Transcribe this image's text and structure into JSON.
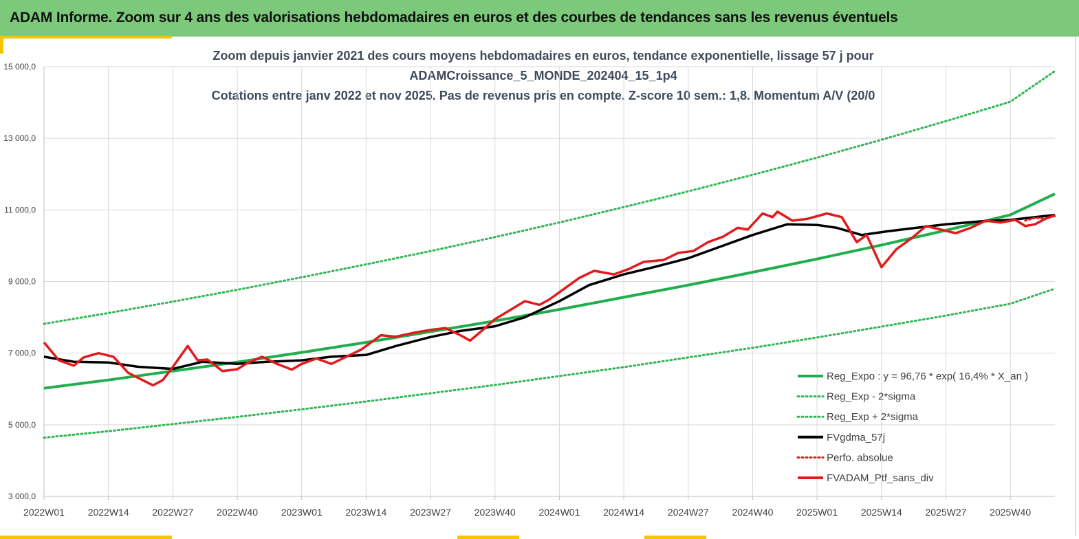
{
  "header": {
    "title": "ADAM Informe. Zoom sur 4 ans des valorisations hebdomadaires en euros et des courbes de tendances sans les revenus éventuels"
  },
  "colors": {
    "header_bg": "#7dc97b",
    "accent": "#f6c400",
    "trend_green": "#1fae4b",
    "band_green": "#2fb552",
    "moving_average": "#000000",
    "portfolio_red": "#e11b1b"
  },
  "chart_data": {
    "type": "line",
    "title_lines": [
      "Zoom depuis janvier 2021 des cours moyens hebdomadaires  en euros, tendance exponentielle, lissage 57 j pour",
      "ADAMCroissance_5_MONDE_202404_15_1p4",
      "Cotations  entre janv 2022 et nov 2025. Pas de revenus pris en compte. Z-score 10 sem.: 1,8. Momentum A/V (20/0"
    ],
    "xlabel": "",
    "ylabel": "",
    "x_ticks": [
      "2022W01",
      "2022W14",
      "2022W27",
      "2022W40",
      "2023W01",
      "2023W14",
      "2023W27",
      "2023W40",
      "2024W01",
      "2024W14",
      "2024W27",
      "2024W40",
      "2025W01",
      "2025W14",
      "2025W27",
      "2025W40"
    ],
    "x_range_weeks": [
      0,
      204
    ],
    "ylim": [
      3000,
      15000
    ],
    "y_ticks": [
      3000,
      5000,
      7000,
      9000,
      11000,
      13000,
      15000
    ],
    "y_tick_labels": [
      "3 000,0",
      "5 000,0",
      "7 000,0",
      "9 000,0",
      "11 000,0",
      "13 000,0",
      "15 000,0"
    ],
    "grid": "vertical and horizontal, light grey",
    "legend_position": "bottom-right",
    "series": [
      {
        "name": "Reg_Expo : y = 96,76 * exp( 16,4% *  X_an )",
        "style": "solid",
        "color": "#1fae4b",
        "x": [
          0,
          13,
          26,
          39,
          52,
          65,
          78,
          91,
          104,
          117,
          130,
          143,
          156,
          169,
          182,
          195,
          204
        ],
        "y": [
          6020,
          6250,
          6500,
          6750,
          7020,
          7300,
          7600,
          7900,
          8220,
          8560,
          8900,
          9260,
          9630,
          10020,
          10430,
          10860,
          11450
        ]
      },
      {
        "name": "Reg_Exp - 2*sigma",
        "style": "dotted",
        "color": "#2fb552",
        "x": [
          0,
          13,
          26,
          39,
          52,
          65,
          78,
          91,
          104,
          117,
          130,
          143,
          156,
          169,
          182,
          195,
          204
        ],
        "y": [
          4640,
          4820,
          5020,
          5220,
          5430,
          5650,
          5880,
          6110,
          6360,
          6610,
          6880,
          7150,
          7440,
          7740,
          8050,
          8380,
          8800
        ]
      },
      {
        "name": "Reg_Exp + 2*sigma",
        "style": "dotted",
        "color": "#2fb552",
        "x": [
          0,
          13,
          26,
          39,
          52,
          65,
          78,
          91,
          104,
          117,
          130,
          143,
          156,
          169,
          182,
          195,
          204
        ],
        "y": [
          7820,
          8120,
          8440,
          8770,
          9120,
          9480,
          9850,
          10240,
          10650,
          11080,
          11520,
          11980,
          12460,
          12960,
          13480,
          14020,
          14880
        ]
      },
      {
        "name": "FVgdma_57j",
        "style": "solid",
        "color": "#000000",
        "x": [
          0,
          6,
          13,
          19,
          26,
          32,
          39,
          45,
          52,
          58,
          65,
          71,
          78,
          84,
          91,
          97,
          104,
          110,
          117,
          123,
          130,
          136,
          143,
          150,
          156,
          160,
          165,
          170,
          176,
          182,
          189,
          195,
          204
        ],
        "y": [
          6900,
          6760,
          6740,
          6620,
          6560,
          6760,
          6700,
          6760,
          6800,
          6900,
          6950,
          7200,
          7450,
          7620,
          7750,
          8000,
          8450,
          8900,
          9200,
          9400,
          9650,
          9950,
          10300,
          10600,
          10580,
          10500,
          10300,
          10400,
          10500,
          10600,
          10680,
          10720,
          10860
        ]
      },
      {
        "name": "Perfo. absolue",
        "style": "dotted",
        "color": "#e11b1b",
        "x": [
          198,
          200,
          202,
          204
        ],
        "y": [
          10700,
          10780,
          10760,
          10830
        ]
      },
      {
        "name": "FVADAM_Ptf_sans_div",
        "style": "solid",
        "color": "#e11b1b",
        "x": [
          0,
          3,
          6,
          8,
          11,
          14,
          17,
          18,
          22,
          24,
          26,
          29,
          31,
          33,
          36,
          39,
          41,
          44,
          47,
          50,
          52,
          55,
          58,
          61,
          64,
          68,
          71,
          75,
          78,
          81,
          84,
          86,
          89,
          91,
          94,
          97,
          100,
          102,
          105,
          108,
          111,
          115,
          118,
          121,
          125,
          128,
          131,
          134,
          137,
          140,
          142,
          145,
          147,
          148,
          151,
          154,
          158,
          161,
          164,
          166,
          169,
          172,
          175,
          178,
          181,
          184,
          187,
          190,
          193,
          196,
          198,
          200,
          202,
          204
        ],
        "y": [
          7300,
          6800,
          6650,
          6880,
          7000,
          6900,
          6450,
          6380,
          6100,
          6250,
          6620,
          7200,
          6800,
          6820,
          6500,
          6550,
          6720,
          6900,
          6700,
          6540,
          6700,
          6850,
          6700,
          6900,
          7100,
          7500,
          7460,
          7580,
          7650,
          7700,
          7500,
          7350,
          7700,
          7950,
          8200,
          8450,
          8350,
          8500,
          8800,
          9100,
          9300,
          9200,
          9350,
          9550,
          9600,
          9800,
          9850,
          10100,
          10250,
          10500,
          10450,
          10900,
          10800,
          10950,
          10700,
          10750,
          10900,
          10800,
          10100,
          10300,
          9400,
          9900,
          10200,
          10550,
          10450,
          10350,
          10500,
          10700,
          10650,
          10720,
          10550,
          10600,
          10750,
          10850
        ]
      }
    ]
  }
}
